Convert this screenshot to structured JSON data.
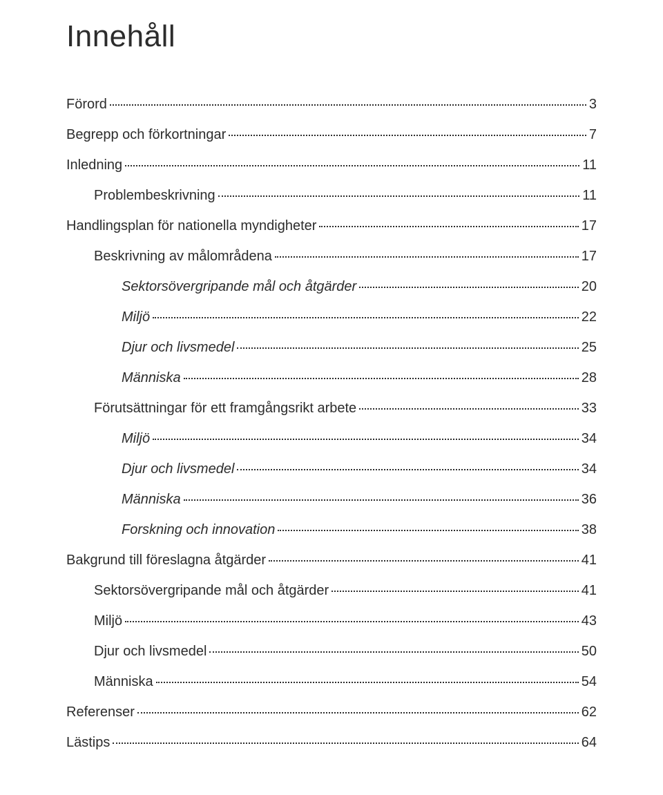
{
  "title": "Innehåll",
  "toc": [
    {
      "label": "Förord",
      "page": "3",
      "level": 0
    },
    {
      "label": "Begrepp och förkortningar",
      "page": "7",
      "level": 0
    },
    {
      "label": "Inledning",
      "page": " 11",
      "level": 0
    },
    {
      "label": "Problembeskrivning",
      "page": "11",
      "level": 1
    },
    {
      "label": "Handlingsplan för nationella myndigheter",
      "page": " 17",
      "level": 0
    },
    {
      "label": "Beskrivning av målområdena",
      "page": "17",
      "level": 1
    },
    {
      "label": "Sektorsövergripande mål och åtgärder",
      "page": "20",
      "level": 2
    },
    {
      "label": "Miljö",
      "page": "22",
      "level": 2
    },
    {
      "label": "Djur och livsmedel",
      "page": "25",
      "level": 2
    },
    {
      "label": "Människa",
      "page": "28",
      "level": 2
    },
    {
      "label": "Förutsättningar för ett framgångsrikt arbete",
      "page": " 33",
      "level": 1
    },
    {
      "label": "Miljö",
      "page": "34",
      "level": 2
    },
    {
      "label": "Djur och livsmedel",
      "page": "34",
      "level": 2
    },
    {
      "label": "Människa",
      "page": "36",
      "level": 2
    },
    {
      "label": "Forskning och innovation",
      "page": "38",
      "level": 2
    },
    {
      "label": "Bakgrund till föreslagna åtgärder",
      "page": " 41",
      "level": 0
    },
    {
      "label": "Sektorsövergripande mål och åtgärder",
      "page": "41",
      "level": 1
    },
    {
      "label": "Miljö",
      "page": "43",
      "level": 1
    },
    {
      "label": "Djur och livsmedel",
      "page": "50",
      "level": 1
    },
    {
      "label": "Människa",
      "page": "54",
      "level": 1
    },
    {
      "label": "Referenser",
      "page": " 62",
      "level": 0
    },
    {
      "label": "Lästips",
      "page": " 64",
      "level": 0
    }
  ],
  "colors": {
    "text": "#2c2c2c",
    "background": "#ffffff",
    "leader": "#2c2c2c"
  },
  "typography": {
    "title_fontsize": 44,
    "body_fontsize": 20,
    "font_family": "Century Gothic"
  }
}
